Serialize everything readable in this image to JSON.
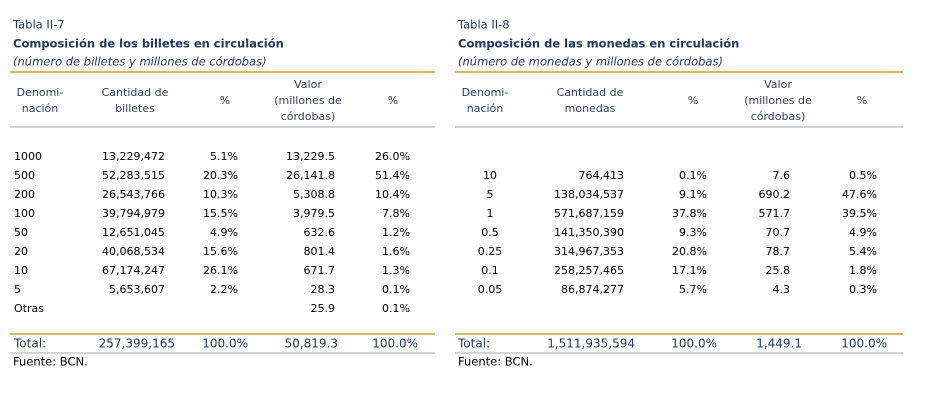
{
  "tables": [
    {
      "label": "Tabla II-7",
      "title": "Composición de los billetes en circulación",
      "subtitle": "(número de billetes y millones de córdobas)",
      "headers": [
        [
          "Denomi-",
          "nación"
        ],
        [
          "Cantidad de",
          "billetes"
        ],
        [
          "%"
        ],
        [
          "Valor",
          "(millones de",
          "córdobas)"
        ],
        [
          "%"
        ]
      ],
      "rows": [
        [
          "1000",
          "13,229,472",
          "5.1%",
          "13,229.5",
          "26.0%"
        ],
        [
          "500",
          "52,283,515",
          "20.3%",
          "26,141.8",
          "51.4%"
        ],
        [
          "200",
          "26,543,766",
          "10.3%",
          "5,308.8",
          "10.4%"
        ],
        [
          "100",
          "39,794,979",
          "15.5%",
          "3,979.5",
          "7.8%"
        ],
        [
          "50",
          "12,651,045",
          "4.9%",
          "632.6",
          "1.2%"
        ],
        [
          "20",
          "40,068,534",
          "15.6%",
          "801.4",
          "1.6%"
        ],
        [
          "10",
          "67,174,247",
          "26.1%",
          "671.7",
          "1.3%"
        ],
        [
          "5",
          "5,653,607",
          "2.2%",
          "28.3",
          "0.1%"
        ],
        [
          "Otras",
          null,
          null,
          "25.9",
          "0.1%"
        ]
      ],
      "total": [
        "Total:",
        "257,399,165",
        "100.0%",
        "50,819.3",
        "100.0%"
      ],
      "source": "Fuente: BCN."
    },
    {
      "label": "Tabla II-8",
      "title": "Composición de las monedas en circulación",
      "subtitle": "(número de monedas y millones de córdobas)",
      "headers": [
        [
          "Denomi-",
          "nación"
        ],
        [
          "Cantidad de",
          "monedas"
        ],
        [
          "%"
        ],
        [
          "Valor",
          "(millones de",
          "córdobas)"
        ],
        [
          "%"
        ]
      ],
      "rows": [
        [
          "10",
          "764,413",
          "0.1%",
          "7.6",
          "0.5%"
        ],
        [
          "5",
          "138,034,537",
          "9.1%",
          "690.2",
          "47.6%"
        ],
        [
          "1",
          "571,687,159",
          "37.8%",
          "571.7",
          "39.5%"
        ],
        [
          "0.5",
          "141,350,390",
          "9.3%",
          "70.7",
          "4.9%"
        ],
        [
          "0.25",
          "314,967,353",
          "20.8%",
          "78.7",
          "5.4%"
        ],
        [
          "0.1",
          "258,257,465",
          "17.1%",
          "25.8",
          "1.8%"
        ],
        [
          "0.05",
          "86,874,277",
          "5.7%",
          "4.3",
          "0.3%"
        ]
      ],
      "total": [
        "Total:",
        "1,511,935,594",
        "100.0%",
        "1,449.1",
        "100.0%"
      ],
      "source": "Fuente: BCN."
    }
  ]
}
